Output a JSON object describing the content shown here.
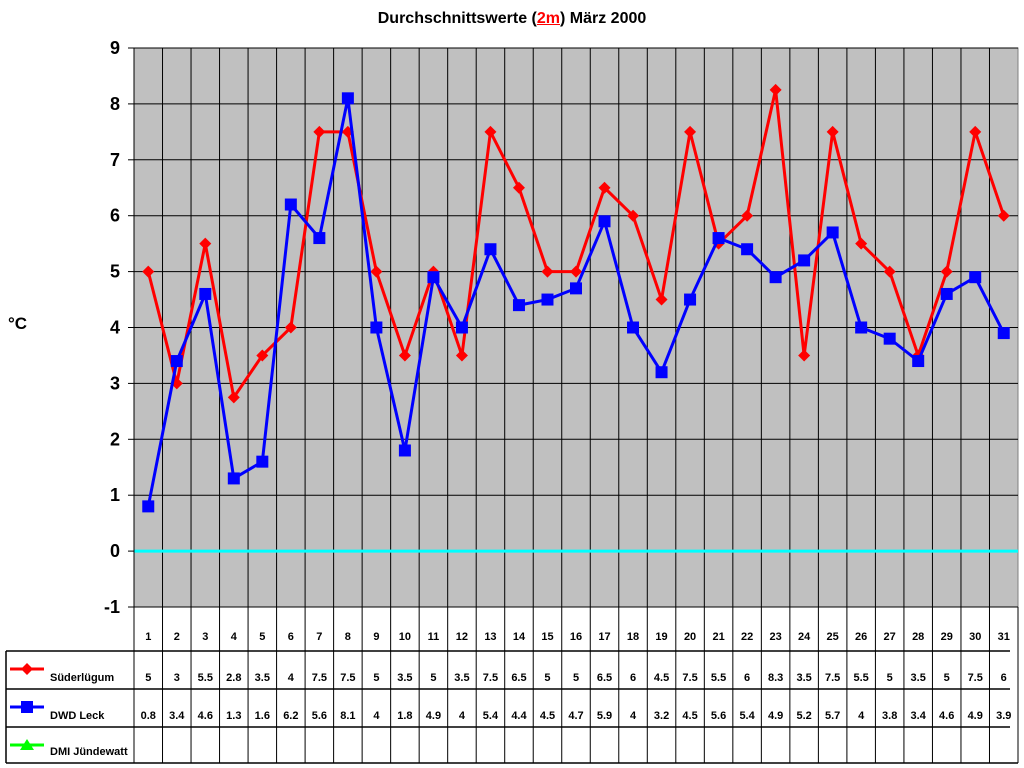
{
  "title": {
    "prefix": "Durchschnittswerte (",
    "highlight": "2m",
    "suffix": ") März 2000"
  },
  "colors": {
    "plot_bg": "#c0c0c0",
    "grid": "#000000",
    "zero_line": "#00ffff",
    "highlight": "#ff0000"
  },
  "chart_data": {
    "type": "line",
    "title": "Durchschnittswerte (2m) März 2000",
    "xlabel": "",
    "ylabel": "°C",
    "ylim": [
      -1,
      9
    ],
    "yticks": [
      9,
      8,
      7,
      6,
      5,
      4,
      3,
      2,
      1,
      0,
      -1
    ],
    "grid": true,
    "legend_position": "bottom-left data table",
    "categories": [
      "1",
      "2",
      "3",
      "4",
      "5",
      "6",
      "7",
      "8",
      "9",
      "10",
      "11",
      "12",
      "13",
      "14",
      "15",
      "16",
      "17",
      "18",
      "19",
      "20",
      "21",
      "22",
      "23",
      "24",
      "25",
      "26",
      "27",
      "28",
      "29",
      "30",
      "31"
    ],
    "series": [
      {
        "name": "Süderlügum",
        "color": "#ff0000",
        "marker": "diamond",
        "values": [
          5,
          3,
          5.5,
          2.75,
          3.5,
          4,
          7.5,
          7.5,
          5,
          3.5,
          5,
          3.5,
          7.5,
          6.5,
          5,
          5,
          6.5,
          6,
          4.5,
          7.5,
          5.5,
          6,
          8.25,
          3.5,
          7.5,
          5.5,
          5,
          3.5,
          5,
          7.5,
          6
        ],
        "labels": [
          "5",
          "3",
          "5.5",
          "2.8",
          "3.5",
          "4",
          "7.5",
          "7.5",
          "5",
          "3.5",
          "5",
          "3.5",
          "7.5",
          "6.5",
          "5",
          "5",
          "6.5",
          "6",
          "4.5",
          "7.5",
          "5.5",
          "6",
          "8.3",
          "3.5",
          "7.5",
          "5.5",
          "5",
          "3.5",
          "5",
          "7.5",
          "6"
        ]
      },
      {
        "name": "DWD Leck",
        "color": "#0000ff",
        "marker": "square",
        "values": [
          0.8,
          3.4,
          4.6,
          1.3,
          1.6,
          6.2,
          5.6,
          8.1,
          4,
          1.8,
          4.9,
          4,
          5.4,
          4.4,
          4.5,
          4.7,
          5.9,
          4,
          3.2,
          4.5,
          5.6,
          5.4,
          4.9,
          5.2,
          5.7,
          4,
          3.8,
          3.4,
          4.6,
          4.9,
          3.9
        ],
        "labels": [
          "0.8",
          "3.4",
          "4.6",
          "1.3",
          "1.6",
          "6.2",
          "5.6",
          "8.1",
          "4",
          "1.8",
          "4.9",
          "4",
          "5.4",
          "4.4",
          "4.5",
          "4.7",
          "5.9",
          "4",
          "3.2",
          "4.5",
          "5.6",
          "5.4",
          "4.9",
          "5.2",
          "5.7",
          "4",
          "3.8",
          "3.4",
          "4.6",
          "4.9",
          "3.9"
        ]
      },
      {
        "name": "DMI Jündewatt",
        "color": "#00ff00",
        "marker": "triangle",
        "values": [],
        "labels": []
      }
    ]
  }
}
